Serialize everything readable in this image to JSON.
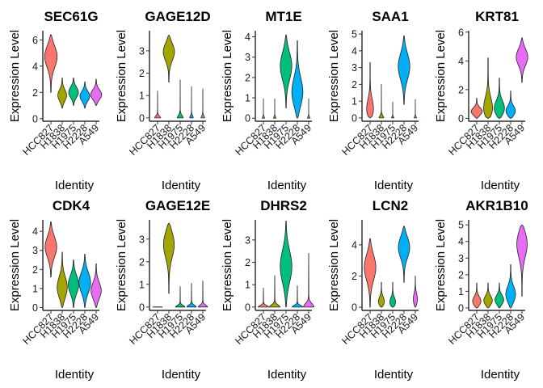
{
  "chart_data": {
    "type": "violin",
    "xlabel": "Identity",
    "ylabel": "Expression Level",
    "categories": [
      "HCC827",
      "H1838",
      "H1975",
      "H2228",
      "A549"
    ],
    "colors": [
      "#F8766D",
      "#A3A500",
      "#00BF7D",
      "#00B0F6",
      "#E76BF3"
    ],
    "panels": [
      {
        "title": "SEC61G",
        "ylim": [
          -0.2,
          6.7
        ],
        "yticks": [
          0,
          2,
          4,
          6
        ],
        "violins": [
          {
            "min": 2.0,
            "max": 6.4,
            "peak": 4.8,
            "width": 0.55
          },
          {
            "min": 0.8,
            "max": 3.1,
            "peak": 1.75,
            "width": 0.38
          },
          {
            "min": 1.0,
            "max": 3.1,
            "peak": 2.0,
            "width": 0.42
          },
          {
            "min": 0.8,
            "max": 2.8,
            "peak": 1.7,
            "width": 0.42
          },
          {
            "min": 1.0,
            "max": 3.0,
            "peak": 1.8,
            "width": 0.48
          }
        ]
      },
      {
        "title": "GAGE12D",
        "ylim": [
          -0.15,
          3.9
        ],
        "yticks": [
          0,
          1,
          2,
          3
        ],
        "violins": [
          {
            "min": 0.0,
            "max": 1.2,
            "peak": 0.0,
            "width": 0.25
          },
          {
            "min": 1.6,
            "max": 3.7,
            "peak": 3.0,
            "width": 0.5
          },
          {
            "min": 0.0,
            "max": 1.7,
            "peak": 0.0,
            "width": 0.25
          },
          {
            "min": 0.0,
            "max": 1.4,
            "peak": 0.0,
            "width": 0.15
          },
          {
            "min": 0.0,
            "max": 1.3,
            "peak": 0.0,
            "width": 0.15
          }
        ]
      },
      {
        "title": "MT1E",
        "ylim": [
          -0.15,
          4.3
        ],
        "yticks": [
          0,
          1,
          2,
          3,
          4
        ],
        "violins": [
          {
            "min": 0.0,
            "max": 0.95,
            "peak": 0.0,
            "width": 0.1
          },
          {
            "min": 0.0,
            "max": 0.95,
            "peak": 0.0,
            "width": 0.1
          },
          {
            "min": 0.5,
            "max": 4.1,
            "peak": 2.6,
            "width": 0.5
          },
          {
            "min": 0.0,
            "max": 3.8,
            "peak": 1.2,
            "width": 0.5
          },
          {
            "min": 0.0,
            "max": 0.95,
            "peak": 0.0,
            "width": 0.1
          }
        ]
      },
      {
        "title": "SAA1",
        "ylim": [
          -0.2,
          5.2
        ],
        "yticks": [
          0,
          1,
          2,
          3,
          4,
          5
        ],
        "violins": [
          {
            "min": 0.0,
            "max": 3.3,
            "peak": 0.3,
            "width": 0.4
          },
          {
            "min": 0.0,
            "max": 2.0,
            "peak": 0.0,
            "width": 0.2
          },
          {
            "min": 0.0,
            "max": 0.95,
            "peak": 0.0,
            "width": 0.1
          },
          {
            "min": 0.8,
            "max": 4.9,
            "peak": 3.1,
            "width": 0.5
          },
          {
            "min": 0.0,
            "max": 1.1,
            "peak": 0.0,
            "width": 0.1
          }
        ]
      },
      {
        "title": "KRT81",
        "ylim": [
          -0.2,
          6.1
        ],
        "yticks": [
          0,
          2,
          4,
          6
        ],
        "violins": [
          {
            "min": 0.0,
            "max": 1.4,
            "peak": 0.45,
            "width": 0.5
          },
          {
            "min": 0.0,
            "max": 4.2,
            "peak": 0.45,
            "width": 0.5
          },
          {
            "min": 0.0,
            "max": 2.8,
            "peak": 0.6,
            "width": 0.5
          },
          {
            "min": 0.0,
            "max": 1.9,
            "peak": 0.45,
            "width": 0.45
          },
          {
            "min": 2.5,
            "max": 5.6,
            "peak": 4.3,
            "width": 0.5
          }
        ]
      },
      {
        "title": "CDK4",
        "ylim": [
          -0.15,
          4.6
        ],
        "yticks": [
          0,
          1,
          2,
          3,
          4
        ],
        "violins": [
          {
            "min": 1.6,
            "max": 4.5,
            "peak": 3.2,
            "width": 0.5
          },
          {
            "min": 0.0,
            "max": 2.9,
            "peak": 1.0,
            "width": 0.45
          },
          {
            "min": 0.0,
            "max": 2.5,
            "peak": 1.2,
            "width": 0.45
          },
          {
            "min": 0.0,
            "max": 2.8,
            "peak": 1.3,
            "width": 0.5
          },
          {
            "min": 0.0,
            "max": 2.3,
            "peak": 0.85,
            "width": 0.45
          }
        ]
      },
      {
        "title": "GAGE12E",
        "ylim": [
          -0.15,
          3.85
        ],
        "yticks": [
          0,
          1,
          2,
          3
        ],
        "violins": [
          {
            "min": 0.0,
            "max": 0.1,
            "peak": 0.0,
            "width": 0.4
          },
          {
            "min": 0.6,
            "max": 3.7,
            "peak": 2.85,
            "width": 0.5
          },
          {
            "min": 0.0,
            "max": 0.9,
            "peak": 0.0,
            "width": 0.4
          },
          {
            "min": 0.0,
            "max": 1.05,
            "peak": 0.0,
            "width": 0.4
          },
          {
            "min": 0.0,
            "max": 1.15,
            "peak": 0.0,
            "width": 0.4
          }
        ]
      },
      {
        "title": "DHRS2",
        "ylim": [
          -0.15,
          3.9
        ],
        "yticks": [
          0,
          1,
          2,
          3
        ],
        "violins": [
          {
            "min": 0.0,
            "max": 0.85,
            "peak": 0.0,
            "width": 0.45
          },
          {
            "min": 0.0,
            "max": 1.4,
            "peak": 0.0,
            "width": 0.45
          },
          {
            "min": 0.0,
            "max": 3.85,
            "peak": 1.8,
            "width": 0.5
          },
          {
            "min": 0.0,
            "max": 0.95,
            "peak": 0.0,
            "width": 0.45
          },
          {
            "min": 0.0,
            "max": 2.4,
            "peak": 0.0,
            "width": 0.45
          }
        ]
      },
      {
        "title": "LCN2",
        "ylim": [
          -0.2,
          5.6
        ],
        "yticks": [
          0,
          2,
          4
        ],
        "violins": [
          {
            "min": 0.0,
            "max": 4.4,
            "peak": 2.6,
            "width": 0.5
          },
          {
            "min": 0.0,
            "max": 1.6,
            "peak": 0.3,
            "width": 0.3
          },
          {
            "min": 0.0,
            "max": 1.6,
            "peak": 0.25,
            "width": 0.3
          },
          {
            "min": 1.6,
            "max": 5.2,
            "peak": 3.9,
            "width": 0.5
          },
          {
            "min": 0.0,
            "max": 2.0,
            "peak": 0.45,
            "width": 0.2
          }
        ]
      },
      {
        "title": "AKR1B10",
        "ylim": [
          -0.15,
          5.3
        ],
        "yticks": [
          0,
          1,
          2,
          3,
          4,
          5
        ],
        "violins": [
          {
            "min": 0.0,
            "max": 1.5,
            "peak": 0.35,
            "width": 0.4
          },
          {
            "min": 0.0,
            "max": 1.5,
            "peak": 0.4,
            "width": 0.4
          },
          {
            "min": 0.0,
            "max": 1.5,
            "peak": 0.45,
            "width": 0.4
          },
          {
            "min": 0.0,
            "max": 2.6,
            "peak": 0.75,
            "width": 0.45
          },
          {
            "min": 0.7,
            "max": 5.0,
            "peak": 4.0,
            "width": 0.5
          }
        ]
      }
    ]
  }
}
